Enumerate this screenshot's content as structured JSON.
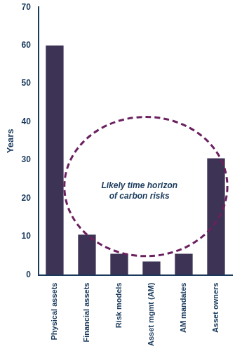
{
  "chart_data": {
    "type": "bar",
    "categories": [
      "Physical assets",
      "Financial assets",
      "Risk models",
      "Asset mgmt (AM)",
      "AM mandates",
      "Asset owners"
    ],
    "values": [
      60,
      10.5,
      5.5,
      3.5,
      5.5,
      30.5
    ],
    "color": "#3d3355",
    "ylabel": "Years",
    "ylim": [
      0,
      70
    ],
    "yticks": [
      0,
      10,
      20,
      30,
      40,
      50,
      60,
      70
    ],
    "grid": false,
    "annotation": "Likely time horizon\nof carbon risks"
  }
}
